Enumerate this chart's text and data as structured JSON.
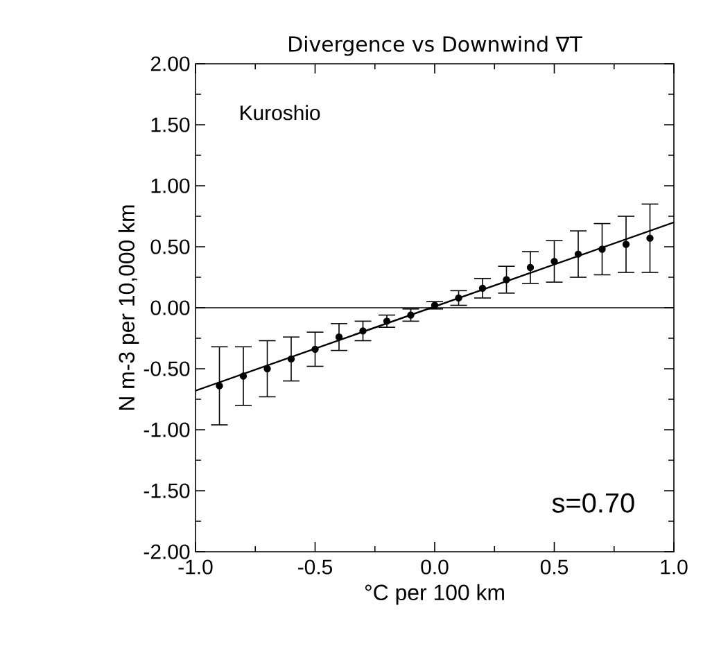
{
  "chart_data": {
    "type": "scatter",
    "title": "Divergence vs Downwind ∇T",
    "xlabel": "°C per 100 km",
    "ylabel": "N m-3 per 10,000 km",
    "xlim": [
      -1,
      1
    ],
    "ylim": [
      -2,
      2
    ],
    "xticks": [
      {
        "value": -1,
        "label": "-1.0"
      },
      {
        "value": -0.5,
        "label": "-0.5"
      },
      {
        "value": 0,
        "label": "0.0"
      },
      {
        "value": 0.5,
        "label": "0.5"
      },
      {
        "value": 1,
        "label": "1.0"
      }
    ],
    "yticks": [
      {
        "value": -2,
        "label": "-2.00"
      },
      {
        "value": -1.5,
        "label": "-1.50"
      },
      {
        "value": -1,
        "label": "-1.00"
      },
      {
        "value": -0.5,
        "label": "-0.50"
      },
      {
        "value": 0,
        "label": "0.00"
      },
      {
        "value": 0.5,
        "label": "0.50"
      },
      {
        "value": 1,
        "label": "1.00"
      },
      {
        "value": 1.5,
        "label": "1.50"
      },
      {
        "value": 2,
        "label": "2.00"
      }
    ],
    "grid": false,
    "series": [
      {
        "marker": "circle",
        "color": "#000000",
        "x": [
          -0.9,
          -0.8,
          -0.7,
          -0.6,
          -0.5,
          -0.4,
          -0.3,
          -0.2,
          -0.1,
          0,
          0.1,
          0.2,
          0.3,
          0.4,
          0.5,
          0.6,
          0.7,
          0.8,
          0.9
        ],
        "values": [
          -0.64,
          -0.56,
          -0.5,
          -0.42,
          -0.34,
          -0.24,
          -0.19,
          -0.11,
          -0.06,
          0.02,
          0.08,
          0.16,
          0.23,
          0.33,
          0.38,
          0.44,
          0.48,
          0.52,
          0.57
        ],
        "errors": [
          0.32,
          0.24,
          0.23,
          0.18,
          0.14,
          0.11,
          0.08,
          0.05,
          0.05,
          0.03,
          0.06,
          0.08,
          0.11,
          0.13,
          0.17,
          0.19,
          0.21,
          0.23,
          0.28
        ]
      },
      {
        "type": "line",
        "marker": "none",
        "color": "#000000",
        "x": [
          -1,
          1
        ],
        "values": [
          -0.68,
          0.7
        ]
      }
    ],
    "ref_lines": [
      {
        "axis": "y",
        "value": 0,
        "color": "#000000",
        "line_style": "solid"
      }
    ],
    "annotations": [
      {
        "text": "Kuroshio"
      },
      {
        "text": "s=0.70"
      }
    ]
  }
}
